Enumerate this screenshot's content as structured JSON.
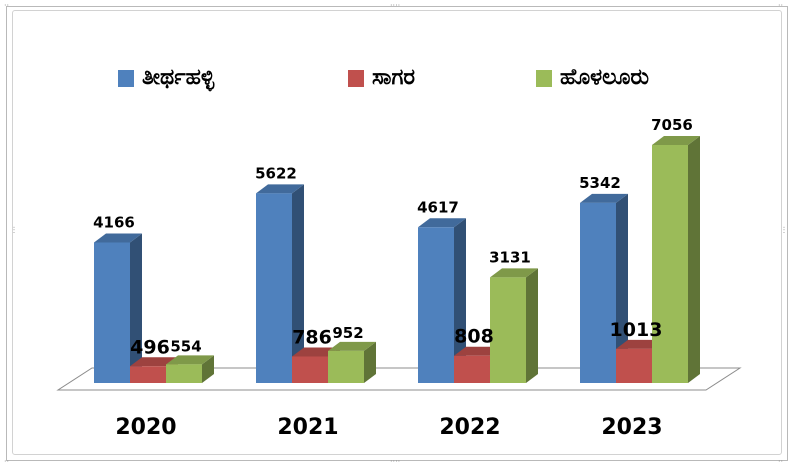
{
  "chart_data": {
    "type": "bar",
    "style": "3d-clustered-column",
    "categories": [
      "2020",
      "2021",
      "2022",
      "2023"
    ],
    "series": [
      {
        "name": "ತೀರ್ಥಹಳ್ಳಿ",
        "color": "#4F81BD",
        "values": [
          4166,
          5622,
          4617,
          5342
        ]
      },
      {
        "name": "ಸಾಗರ",
        "color": "#C0504D",
        "values": [
          496,
          786,
          808,
          1013
        ]
      },
      {
        "name": "ಹೊಳಲೂರು",
        "color": "#9BBB59",
        "values": [
          554,
          952,
          3131,
          7056
        ]
      }
    ],
    "legend_position": "top",
    "grid": false,
    "ylim": [
      0,
      7056
    ]
  }
}
